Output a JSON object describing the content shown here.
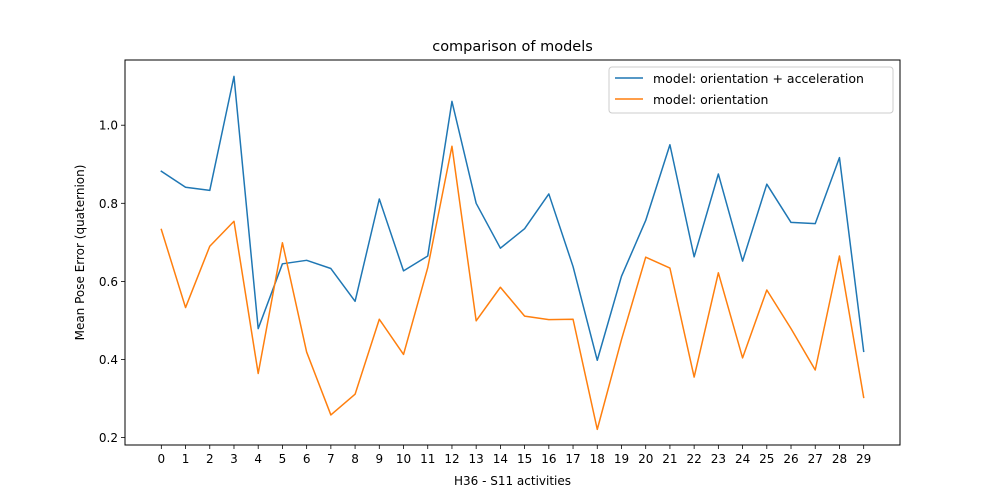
{
  "chart_data": {
    "type": "line",
    "title": "comparison of models",
    "xlabel": "H36 - S11 activities",
    "ylabel": "Mean Pose Error (quaternion)",
    "x": [
      0,
      1,
      2,
      3,
      4,
      5,
      6,
      7,
      8,
      9,
      10,
      11,
      12,
      13,
      14,
      15,
      16,
      17,
      18,
      19,
      20,
      21,
      22,
      23,
      24,
      25,
      26,
      27,
      28,
      29
    ],
    "xticks": [
      "0",
      "1",
      "2",
      "3",
      "4",
      "5",
      "6",
      "7",
      "8",
      "9",
      "10",
      "11",
      "12",
      "13",
      "14",
      "15",
      "16",
      "17",
      "18",
      "19",
      "20",
      "21",
      "22",
      "23",
      "24",
      "25",
      "26",
      "27",
      "28",
      "29"
    ],
    "yticks": [
      "0.2",
      "0.4",
      "0.6",
      "0.8",
      "1.0"
    ],
    "ytick_values": [
      0.2,
      0.4,
      0.6,
      0.8,
      1.0
    ],
    "xlim": [
      -1.5,
      30.5
    ],
    "ylim": [
      0.181,
      1.167
    ],
    "grid": false,
    "legend_position": "upper right",
    "series": [
      {
        "name": "model: orientation + acceleration",
        "color": "#1f77b4",
        "values": [
          0.882,
          0.841,
          0.833,
          1.125,
          0.479,
          0.645,
          0.654,
          0.633,
          0.549,
          0.811,
          0.627,
          0.665,
          1.061,
          0.8,
          0.685,
          0.735,
          0.824,
          0.638,
          0.398,
          0.613,
          0.756,
          0.95,
          0.663,
          0.875,
          0.652,
          0.849,
          0.751,
          0.748,
          0.917,
          0.421
        ]
      },
      {
        "name": "model: orientation",
        "color": "#ff7f0e",
        "values": [
          0.733,
          0.533,
          0.69,
          0.754,
          0.364,
          0.699,
          0.419,
          0.258,
          0.311,
          0.503,
          0.413,
          0.635,
          0.946,
          0.499,
          0.585,
          0.511,
          0.502,
          0.503,
          0.221,
          0.451,
          0.662,
          0.634,
          0.355,
          0.622,
          0.404,
          0.578,
          0.479,
          0.373,
          0.665,
          0.303
        ]
      }
    ]
  }
}
